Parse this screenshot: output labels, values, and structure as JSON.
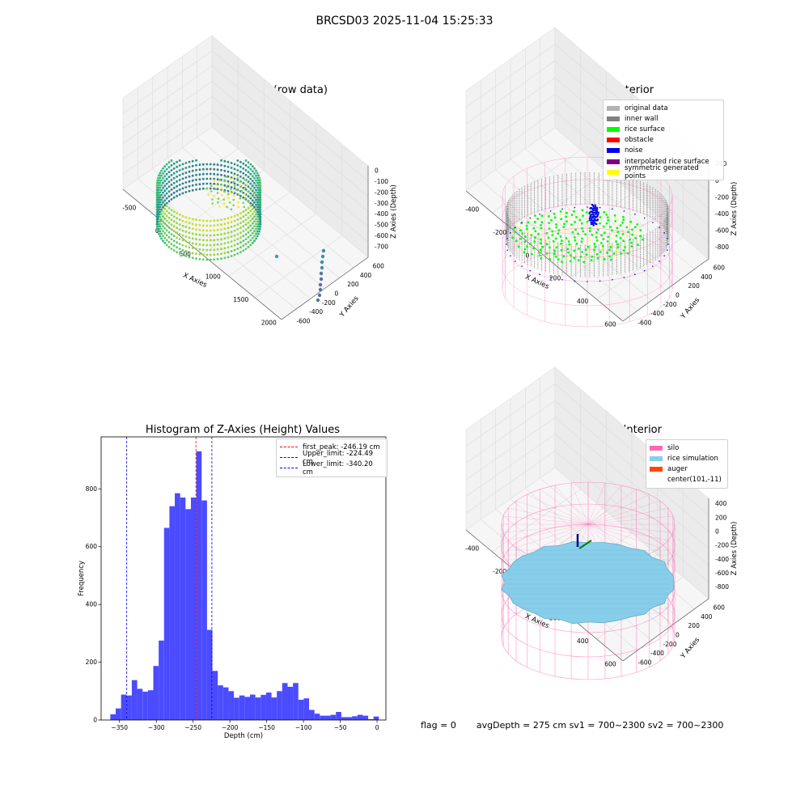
{
  "suptitle": "BRCSD03 2025-11-04 15:25:33",
  "footer": {
    "flag": "flag = 0",
    "info": "avgDepth = 275 cm  sv1 = 700~2300  sv2 = 700~2300"
  },
  "panel1": {
    "title": "3D Plot of Silo Interior(row data)",
    "xlabel": "X Axies",
    "ylabel": "Y Axies",
    "zlabel": "Z Axies (Depth)",
    "xticks": [
      "-500",
      "0",
      "500",
      "1000",
      "1500",
      "2000"
    ],
    "yticks": [
      "600",
      "400",
      "200",
      "0",
      "-200",
      "-400",
      "-600"
    ],
    "zticks": [
      "0",
      "-100",
      "-200",
      "-300",
      "-400",
      "-500",
      "-600",
      "-700"
    ]
  },
  "panel2": {
    "title": "3D classify of Silo Interior",
    "xlabel": "X Axies",
    "ylabel": "Y Axies",
    "zlabel": "Z Axies (Depth)",
    "xticks": [
      "-400",
      "-200",
      "0",
      "200",
      "400",
      "600"
    ],
    "yticks": [
      "600",
      "400",
      "200",
      "0",
      "-200",
      "-400",
      "-600"
    ],
    "zticks": [
      "200",
      "0",
      "-200",
      "-400",
      "-600",
      "-800"
    ],
    "legend": [
      {
        "label": "original data",
        "color": "#b3b3b3"
      },
      {
        "label": "inner wall",
        "color": "#808080"
      },
      {
        "label": "rice surface",
        "color": "#00ff00"
      },
      {
        "label": "obstacle",
        "color": "#ff0000"
      },
      {
        "label": "noise",
        "color": "#0000ee"
      },
      {
        "label": "interpolated rice surface",
        "color": "#800080"
      },
      {
        "label": "symmetric generated points",
        "color": "#ffff00"
      }
    ]
  },
  "panel4": {
    "title": "3D simulation of Silo Interior",
    "xlabel": "X Axies",
    "ylabel": "Y Axies",
    "zlabel": "Z Axies (Depth)",
    "xticks": [
      "-400",
      "-200",
      "0",
      "200",
      "400",
      "600"
    ],
    "yticks": [
      "600",
      "400",
      "200",
      "0",
      "-200",
      "-400",
      "-600"
    ],
    "zticks": [
      "400",
      "200",
      "0",
      "-200",
      "-400",
      "-600",
      "-800"
    ],
    "legend": [
      {
        "label": "silo",
        "color": "#ff69b4"
      },
      {
        "label": "rice simulation",
        "color": "#87ceeb"
      },
      {
        "label": "auger",
        "color": "#ff4500"
      },
      {
        "label": "center(101,-11)",
        "color": ""
      }
    ]
  },
  "colors": {
    "hist_bar": "#4b4bff",
    "peak_line": "#ff0000",
    "limit_line": "#0000ff",
    "silo": "#ff69b4",
    "rice": "#87ceeb",
    "wall": "#808080",
    "surface": "#00ff00",
    "noise": "#0000ee"
  },
  "chart_data": [
    {
      "type": "histogram",
      "title": "Histogram of Z-Axies (Height) Values",
      "xlabel": "Depth (cm)",
      "ylabel": "Frequency",
      "xlim": [
        -375,
        12
      ],
      "ylim": [
        0,
        980
      ],
      "xticks": [
        -350,
        -300,
        -250,
        -200,
        -150,
        -100,
        -50,
        0
      ],
      "yticks": [
        0,
        200,
        400,
        600,
        800
      ],
      "bin_start": -362.5,
      "bin_width": 7.3,
      "values": [
        20,
        40,
        88,
        85,
        138,
        108,
        98,
        103,
        187,
        275,
        665,
        740,
        785,
        770,
        730,
        770,
        930,
        760,
        312,
        170,
        120,
        113,
        100,
        77,
        85,
        80,
        88,
        78,
        87,
        95,
        78,
        100,
        128,
        115,
        128,
        70,
        75,
        35,
        22,
        15,
        15,
        18,
        28,
        10,
        10,
        13,
        18,
        15,
        3,
        12
      ],
      "vlines": [
        {
          "label": "first_peak: -246.19 cm",
          "x": -246.19,
          "color": "#ff0000"
        },
        {
          "label": "Upper_limit: -224.49 cm",
          "x": -224.49,
          "color": "#0000ff"
        },
        {
          "label": "Lower_limit: -340.20 cm",
          "x": -340.2,
          "color": "#0000ff"
        }
      ]
    }
  ]
}
